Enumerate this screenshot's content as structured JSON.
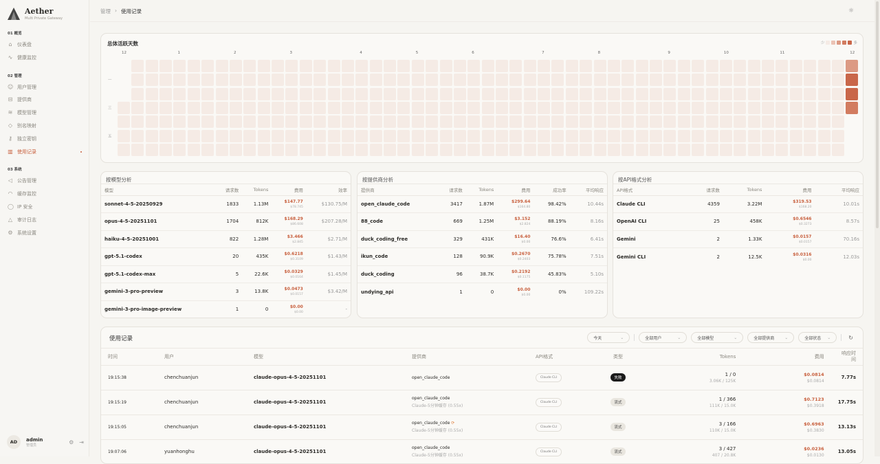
{
  "brand": {
    "name": "Aether",
    "subtitle": "Multi Private Gateway"
  },
  "sidebar": {
    "sections": [
      {
        "label": "01 概览",
        "items": [
          {
            "label": "仪表盘",
            "icon": "home-icon"
          },
          {
            "label": "健康监控",
            "icon": "activity-icon"
          }
        ]
      },
      {
        "label": "02 管理",
        "items": [
          {
            "label": "用户管理",
            "icon": "users-icon"
          },
          {
            "label": "提供商",
            "icon": "server-icon"
          },
          {
            "label": "模型管理",
            "icon": "layers-icon"
          },
          {
            "label": "别名映射",
            "icon": "tag-icon"
          },
          {
            "label": "独立密钥",
            "icon": "key-icon"
          },
          {
            "label": "使用记录",
            "icon": "bar-chart-icon",
            "active": true
          }
        ]
      },
      {
        "label": "03 系统",
        "items": [
          {
            "label": "公告管理",
            "icon": "megaphone-icon"
          },
          {
            "label": "缓存监控",
            "icon": "gauge-icon"
          },
          {
            "label": "IP 安全",
            "icon": "shield-icon"
          },
          {
            "label": "审计日志",
            "icon": "warning-icon"
          },
          {
            "label": "系统设置",
            "icon": "settings-icon"
          }
        ]
      }
    ]
  },
  "user": {
    "initials": "AD",
    "name": "admin",
    "role": "管理员"
  },
  "breadcrumb": {
    "parent": "管理",
    "current": "使用记录"
  },
  "heatmap": {
    "title": "总体活跃天数",
    "legend_low": "少",
    "legend_high": "多",
    "months": [
      "12",
      "1",
      "2",
      "3",
      "4",
      "5",
      "6",
      "7",
      "8",
      "9",
      "10",
      "11",
      "12"
    ],
    "weekday_labels": [
      "一",
      "三",
      "五"
    ],
    "colors": [
      "#f5ebe5",
      "#ebc3b5",
      "#dc9a84",
      "#d27c60",
      "#c9674a"
    ],
    "last_week_levels": [
      2,
      4,
      4,
      3
    ]
  },
  "model_analysis": {
    "title": "按模型分析",
    "headers": [
      "模型",
      "请求数",
      "Tokens",
      "费用",
      "效率"
    ],
    "rows": [
      [
        "sonnet-4-5-20250929",
        "1833",
        "1.13M",
        "$147.77",
        "$78.745",
        "$130.75/M"
      ],
      [
        "opus-4-5-20251101",
        "1704",
        "812K",
        "$168.29",
        "$86.608",
        "$207.28/M"
      ],
      [
        "haiku-4-5-20251001",
        "822",
        "1.28M",
        "$3.466",
        "$2.845",
        "$2.71/M"
      ],
      [
        "gpt-5.1-codex",
        "20",
        "435K",
        "$0.6218",
        "$0.3109",
        "$1.43/M"
      ],
      [
        "gpt-5.1-codex-max",
        "5",
        "22.6K",
        "$0.0329",
        "$0.0164",
        "$1.45/M"
      ],
      [
        "gemini-3-pro-preview",
        "3",
        "13.8K",
        "$0.0473",
        "$0.0157",
        "$3.42/M"
      ],
      [
        "gemini-3-pro-image-preview",
        "1",
        "0",
        "$0.00",
        "$0.00",
        "-"
      ]
    ]
  },
  "provider_analysis": {
    "title": "按提供商分析",
    "headers": [
      "提供商",
      "请求数",
      "Tokens",
      "费用",
      "成功率",
      "平均响应"
    ],
    "rows": [
      [
        "open_claude_code",
        "3417",
        "1.87M",
        "$299.64",
        "$164.80",
        "98.42%",
        "10.44s"
      ],
      [
        "88_code",
        "669",
        "1.25M",
        "$3.152",
        "$2.824",
        "88.19%",
        "8.16s"
      ],
      [
        "duck_coding_free",
        "329",
        "431K",
        "$16.40",
        "$0.00",
        "76.6%",
        "6.41s"
      ],
      [
        "ikun_code",
        "128",
        "90.9K",
        "$0.2670",
        "$0.2403",
        "75.78%",
        "7.51s"
      ],
      [
        "duck_coding",
        "96",
        "38.7K",
        "$0.2192",
        "$0.1175",
        "45.83%",
        "5.10s"
      ],
      [
        "undying_api",
        "1",
        "0",
        "$0.00",
        "$0.00",
        "0%",
        "109.22s"
      ]
    ]
  },
  "api_analysis": {
    "title": "按API格式分析",
    "headers": [
      "API格式",
      "请求数",
      "Tokens",
      "费用",
      "平均响应"
    ],
    "rows": [
      [
        "Claude CLI",
        "4359",
        "3.22M",
        "$319.53",
        "$168.20",
        "10.01s"
      ],
      [
        "OpenAI CLI",
        "25",
        "458K",
        "$0.6546",
        "$0.3273",
        "8.57s"
      ],
      [
        "Gemini",
        "2",
        "1.33K",
        "$0.0157",
        "$0.0157",
        "70.16s"
      ],
      [
        "Gemini CLI",
        "2",
        "12.5K",
        "$0.0316",
        "$0.00",
        "12.03s"
      ]
    ]
  },
  "usage": {
    "title": "使用记录",
    "filters": [
      "今天",
      "全部用户",
      "全部模型",
      "全部提供商",
      "全部状态"
    ],
    "headers": [
      "时间",
      "用户",
      "模型",
      "提供商",
      "API格式",
      "类型",
      "Tokens",
      "费用",
      "响应时间"
    ],
    "rows": [
      {
        "time": "19:15:38",
        "user": "chenchuanjun",
        "model": "claude-opus-4-5-20251101",
        "provider": "open_claude_code",
        "provider_sub": "",
        "retry": false,
        "api": "Claude CLI",
        "type": "失败",
        "fail": true,
        "tokens": "1 / 0",
        "tokens_sub": "3.06K / 125K",
        "cost": "$0.0814",
        "cost_sub": "$0.0814",
        "resp": "7.77s"
      },
      {
        "time": "19:15:19",
        "user": "chenchuanjun",
        "model": "claude-opus-4-5-20251101",
        "provider": "open_claude_code",
        "provider_sub": "Claude-5分钟缓存 (0.55x)",
        "retry": false,
        "api": "Claude CLI",
        "type": "流式",
        "fail": false,
        "tokens": "1 / 366",
        "tokens_sub": "111K / 15.0K",
        "cost": "$0.7123",
        "cost_sub": "$0.3918",
        "resp": "17.75s"
      },
      {
        "time": "19:15:05",
        "user": "chenchuanjun",
        "model": "claude-opus-4-5-20251101",
        "provider": "open_claude_code",
        "provider_sub": "Claude-5分钟缓存 (0.55x)",
        "retry": true,
        "api": "Claude CLI",
        "type": "流式",
        "fail": false,
        "tokens": "3 / 166",
        "tokens_sub": "110K / 15.0K",
        "cost": "$0.6963",
        "cost_sub": "$0.3830",
        "resp": "13.13s"
      },
      {
        "time": "19:07:06",
        "user": "yuanhonghu",
        "model": "claude-opus-4-5-20251101",
        "provider": "open_claude_code",
        "provider_sub": "Claude-5分钟缓存 (0.55x)",
        "retry": false,
        "api": "Claude CLI",
        "type": "流式",
        "fail": false,
        "tokens": "3 / 427",
        "tokens_sub": "407 / 20.8K",
        "cost": "$0.0236",
        "cost_sub": "$0.0130",
        "resp": "13.05s"
      }
    ]
  }
}
